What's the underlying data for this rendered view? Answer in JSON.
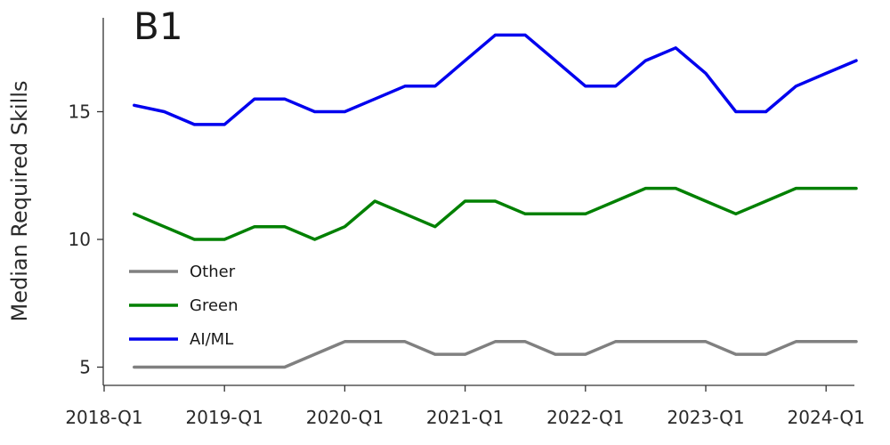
{
  "chart_data": {
    "type": "line",
    "title": "B1",
    "xlabel": "",
    "ylabel": "Median Required Skills",
    "x": [
      "2018-Q2",
      "2018-Q3",
      "2018-Q4",
      "2019-Q1",
      "2019-Q2",
      "2019-Q3",
      "2019-Q4",
      "2020-Q1",
      "2020-Q2",
      "2020-Q3",
      "2020-Q4",
      "2021-Q1",
      "2021-Q2",
      "2021-Q3",
      "2021-Q4",
      "2022-Q1",
      "2022-Q2",
      "2022-Q3",
      "2022-Q4",
      "2023-Q1",
      "2023-Q2",
      "2023-Q3",
      "2023-Q4",
      "2024-Q1",
      "2024-Q2"
    ],
    "x_ticks": [
      "2018-Q1",
      "2019-Q1",
      "2020-Q1",
      "2021-Q1",
      "2022-Q1",
      "2023-Q1",
      "2024-Q1"
    ],
    "y_ticks": [
      5,
      10,
      15
    ],
    "ylim": [
      4.5,
      18.8
    ],
    "legend_position": "bottom-left",
    "grid": false,
    "series": [
      {
        "name": "Other",
        "color": "#808080",
        "values": [
          5,
          5,
          5,
          5,
          5,
          5,
          5.5,
          6,
          6,
          6,
          5.5,
          5.5,
          6,
          6,
          5.5,
          5.5,
          6,
          6,
          6,
          6,
          5.5,
          5.5,
          6,
          6,
          6
        ]
      },
      {
        "name": "Green",
        "color": "#008000",
        "values": [
          11,
          10.5,
          10,
          10,
          10.5,
          10.5,
          10,
          10.5,
          11.5,
          11,
          10.5,
          11.5,
          11.5,
          11,
          11,
          11,
          11.5,
          12,
          12,
          11.5,
          11,
          11.5,
          12,
          12,
          12
        ]
      },
      {
        "name": "AI/ML",
        "color": "#0000ee",
        "values": [
          15.25,
          15,
          14.5,
          14.5,
          15.5,
          15.5,
          15,
          15,
          15.5,
          16,
          16,
          17,
          18,
          18,
          17,
          16,
          16,
          17,
          17.5,
          16.5,
          15,
          15,
          16,
          16.5,
          17
        ]
      }
    ]
  }
}
